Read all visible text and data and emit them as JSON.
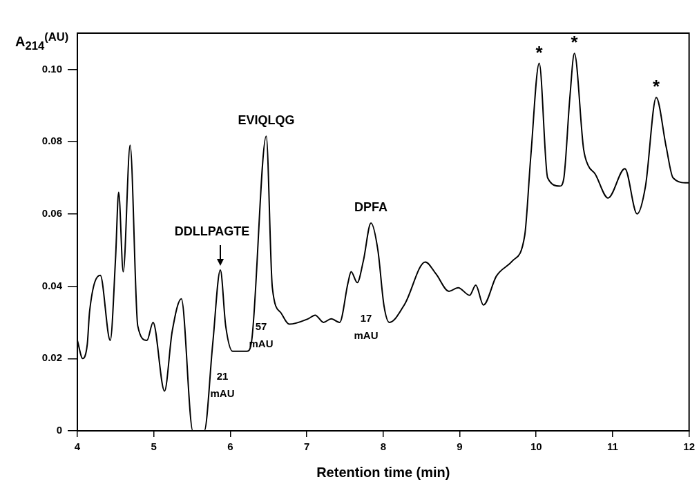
{
  "chart_data": {
    "type": "line",
    "xlabel": "Retention time (min)",
    "ylabel": "A$_{214}$$^{(AU)}$",
    "xlim": [
      4,
      12
    ],
    "xticks": [
      4,
      5,
      6,
      7,
      8,
      9,
      10,
      11,
      12
    ],
    "ylim": [
      0,
      0.11
    ],
    "yticks": [
      {
        "value": 0,
        "label": "0"
      },
      {
        "value": 0.02,
        "label": "0.02"
      },
      {
        "value": 0.04,
        "label": "0.04"
      },
      {
        "value": 0.06,
        "label": "0.06"
      },
      {
        "value": 0.08,
        "label": "0.08"
      },
      {
        "value": 0.1,
        "label": "0.10"
      }
    ],
    "grid": false,
    "legend": false,
    "marker": "none",
    "line_style": "solid",
    "series": [
      {
        "color": "#000000",
        "x": [
          4.0,
          4.07,
          4.13,
          4.16,
          4.3,
          4.43,
          4.5,
          4.54,
          4.6,
          4.69,
          4.79,
          4.91,
          4.99,
          5.14,
          5.24,
          5.36,
          5.51,
          5.66,
          5.77,
          5.87,
          5.94,
          6.03,
          6.22,
          6.28,
          6.47,
          6.55,
          6.66,
          6.77,
          7.02,
          7.11,
          7.22,
          7.32,
          7.43,
          7.54,
          7.58,
          7.66,
          7.74,
          7.84,
          7.93,
          8.01,
          8.08,
          8.28,
          8.55,
          8.69,
          8.86,
          8.98,
          9.13,
          9.21,
          9.31,
          9.48,
          9.69,
          9.85,
          9.93,
          10.04,
          10.15,
          10.31,
          10.36,
          10.44,
          10.5,
          10.62,
          10.68,
          10.77,
          10.94,
          11.16,
          11.32,
          11.43,
          11.57,
          11.7,
          11.79,
          11.98,
          12.0
        ],
        "values": [
          0.025,
          0.02,
          0.024,
          0.033,
          0.043,
          0.025,
          0.048,
          0.066,
          0.044,
          0.079,
          0.029,
          0.025,
          0.03,
          0.011,
          0.0275,
          0.0365,
          0,
          0,
          0.024,
          0.0445,
          0.029,
          0.022,
          0.022,
          0.025,
          0.0815,
          0.0396,
          0.0327,
          0.0295,
          0.031,
          0.032,
          0.03,
          0.031,
          0.03,
          0.041,
          0.044,
          0.041,
          0.047,
          0.0575,
          0.05,
          0.0346,
          0.03,
          0.035,
          0.0467,
          0.0434,
          0.0386,
          0.0396,
          0.0375,
          0.0403,
          0.0348,
          0.0428,
          0.047,
          0.054,
          0.076,
          0.1017,
          0.07,
          0.0677,
          0.0696,
          0.092,
          0.1044,
          0.078,
          0.0734,
          0.0711,
          0.0644,
          0.0725,
          0.06,
          0.0677,
          0.0922,
          0.0786,
          0.07,
          0.0686,
          0.0686
        ]
      }
    ],
    "annotations": [
      {
        "text": "DDLLPAGTE",
        "x": 5.87,
        "y": 0.0445
      },
      {
        "text": "EVIQLQG",
        "x": 6.47,
        "y": 0.0815
      },
      {
        "text": "DPFA",
        "x": 7.84,
        "y": 0.0575
      },
      {
        "text": "*",
        "x": 10.04,
        "y": 0.1017
      },
      {
        "text": "*",
        "x": 10.5,
        "y": 0.1044
      },
      {
        "text": "*",
        "x": 11.57,
        "y": 0.0922
      },
      "21\nmAU",
      "57\nmAU",
      "17\nmAU"
    ]
  }
}
